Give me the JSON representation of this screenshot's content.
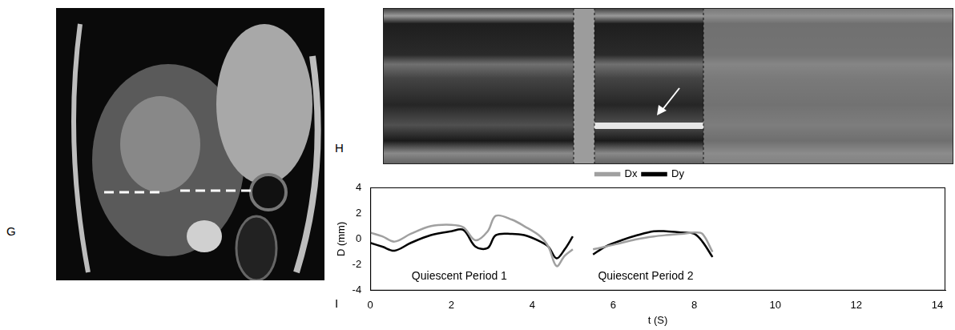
{
  "panel_labels": [
    "G",
    "H",
    "I"
  ],
  "chart_data": {
    "type": "line",
    "x_label": "t (S)",
    "y_label": "D (mm)",
    "x": [
      0,
      0.3,
      0.6,
      1.0,
      1.5,
      2.0,
      2.3,
      2.6,
      2.9,
      3.1,
      3.5,
      3.8,
      4.2,
      4.4,
      4.6,
      4.8,
      5.0,
      5.25,
      5.5,
      5.8,
      6.2,
      6.6,
      7.0,
      7.3,
      7.7,
      8.0,
      8.2,
      8.45
    ],
    "series": [
      {
        "name": "Dx",
        "color": "#a0a0a0",
        "values": [
          0.5,
          0.2,
          -0.2,
          0.4,
          1.0,
          1.1,
          0.9,
          -0.1,
          0.6,
          1.8,
          1.5,
          1.0,
          0.2,
          -0.6,
          -2.1,
          -1.3,
          -0.8,
          null,
          -0.8,
          -0.6,
          -0.3,
          0.0,
          0.2,
          0.3,
          0.4,
          0.5,
          0.4,
          -1.0
        ]
      },
      {
        "name": "Dy",
        "color": "#000000",
        "values": [
          -0.3,
          -0.6,
          -0.9,
          -0.3,
          0.3,
          0.6,
          0.7,
          -0.6,
          -0.7,
          0.3,
          0.4,
          0.3,
          -0.2,
          -0.6,
          -1.5,
          -0.8,
          0.2,
          null,
          -1.2,
          -0.6,
          -0.1,
          0.3,
          0.6,
          0.6,
          0.5,
          0.4,
          -0.2,
          -1.4
        ]
      }
    ],
    "annotations": [
      {
        "text": "Quiescent Period 1",
        "x": 2.2,
        "y": -2.9
      },
      {
        "text": "Quiescent Period 2",
        "x": 6.8,
        "y": -2.9
      }
    ],
    "xlim": [
      0,
      14.2
    ],
    "xticks": [
      0,
      2,
      4,
      6,
      8,
      10,
      12,
      14
    ],
    "ylim": [
      -4,
      4
    ],
    "yticks": [
      -4,
      -2,
      0,
      2,
      4
    ],
    "grid": false,
    "legend": "top"
  }
}
